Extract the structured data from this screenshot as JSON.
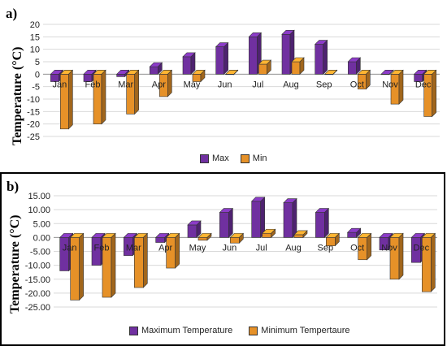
{
  "chart_data": [
    {
      "type": "bar",
      "panel_label": "a)",
      "ylabel": "Temperature (°C)",
      "categories": [
        "Jan",
        "Feb",
        "Mar",
        "Apr",
        "May",
        "Jun",
        "Jul",
        "Aug",
        "Sep",
        "Oct",
        "Nov",
        "Dec"
      ],
      "ylim": [
        -25,
        20
      ],
      "yticks": [
        "20",
        "15",
        "10",
        "5",
        "0",
        "-5",
        "-10",
        "-15",
        "-20",
        "-25"
      ],
      "series": [
        {
          "name": "Max",
          "color": "#7030a0",
          "values": [
            -3,
            -3,
            -1,
            3,
            7,
            11,
            15,
            16,
            12,
            5,
            0,
            -3
          ]
        },
        {
          "name": "Min",
          "color": "#e69128",
          "values": [
            -22,
            -20,
            -16,
            -9,
            -3,
            0,
            4,
            5,
            0,
            -6,
            -12,
            -17
          ]
        }
      ]
    },
    {
      "type": "bar",
      "panel_label": "b)",
      "ylabel": "Temperature (°C)",
      "categories": [
        "Jan",
        "Feb",
        "Mar",
        "Apr",
        "May",
        "Jun",
        "Jul",
        "Aug",
        "Sep",
        "Oct",
        "Nov",
        "Dec"
      ],
      "ylim": [
        -25,
        15
      ],
      "yticks": [
        "15.00",
        "10.00",
        "5.00",
        "0.00",
        "-5.00",
        "-10.00",
        "-15.00",
        "-20.00",
        "-25.00"
      ],
      "series": [
        {
          "name": "Maximum Temperature",
          "color": "#7030a0",
          "values": [
            -12,
            -10,
            -6.5,
            -1.8,
            4.5,
            9,
            13,
            12.5,
            9,
            1.8,
            -4.5,
            -9
          ]
        },
        {
          "name": "Minimum Tempertaure",
          "color": "#e69128",
          "values": [
            -22.5,
            -21.5,
            -18,
            -11,
            -1,
            -2,
            1.5,
            1,
            -3,
            -8,
            -15,
            -19.5
          ]
        }
      ]
    }
  ]
}
